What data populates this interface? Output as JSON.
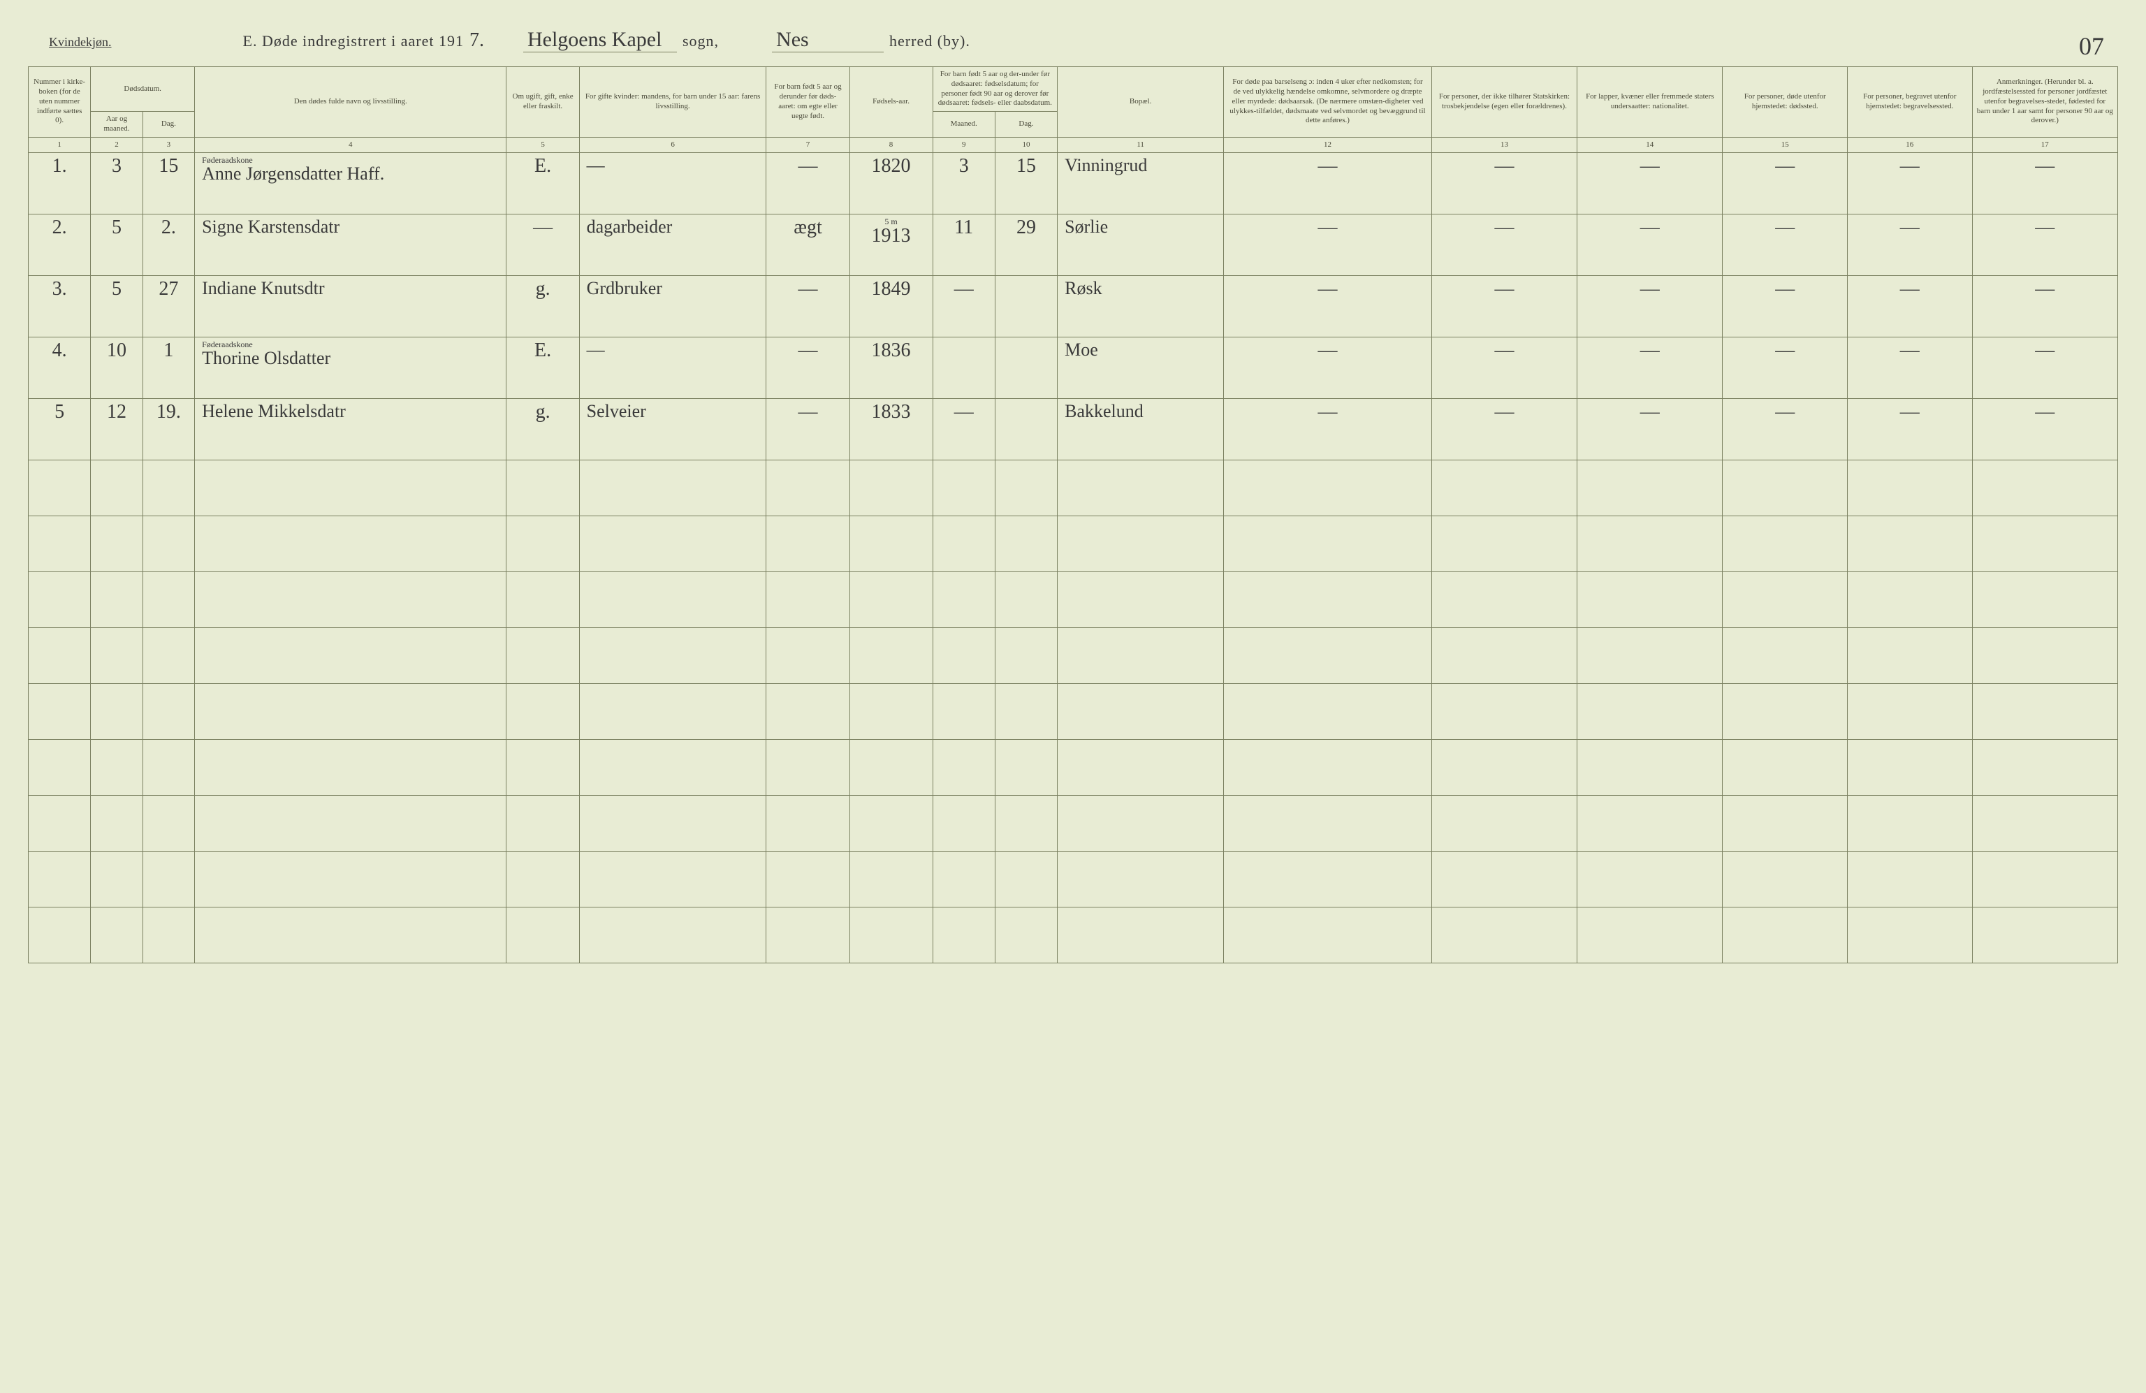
{
  "page": {
    "gender_label": "Kvindekjøn.",
    "title_prefix": "E.  Døde indregistrert i aaret 191",
    "year_suffix": "7.",
    "parish_label_1": "sogn,",
    "parish_label_2": "herred (by).",
    "parish_handwritten": "Helgoens Kapel",
    "district_handwritten": "Nes",
    "page_number": "07"
  },
  "columns": {
    "c1": "Nummer i kirke-boken (for de uten nummer indførte sættes 0).",
    "c2_3": "Dødsdatum.",
    "c2": "Aar og maaned.",
    "c3": "Dag.",
    "c4": "Den dødes fulde navn og livsstilling.",
    "c5": "Om ugift, gift, enke eller fraskilt.",
    "c6": "For gifte kvinder: mandens, for barn under 15 aar: farens livsstilling.",
    "c7": "For barn født 5 aar og derunder før døds-aaret: om egte eller uegte født.",
    "c8": "Fødsels-aar.",
    "c9_10": "For barn født 5 aar og der-under før dødsaaret: fødselsdatum; for personer født 90 aar og derover før dødsaaret: fødsels- eller daabsdatum.",
    "c9": "Maaned.",
    "c10": "Dag.",
    "c11": "Bopæl.",
    "c12": "For døde paa barselseng ɔ: inden 4 uker efter nedkomsten; for de ved ulykkelig hændelse omkomne, selvmordere og dræpte eller myrdede: dødsaarsak. (De nærmere omstæn-digheter ved ulykkes-tilfældet, dødsmaate ved selvmordet og bevæggrund til dette anføres.)",
    "c13": "For personer, der ikke tilhører Statskirken: trosbekjendelse (egen eller forældrenes).",
    "c14": "For lapper, kvæner eller fremmede staters undersaatter: nationalitet.",
    "c15": "For personer, døde utenfor hjemstedet: dødssted.",
    "c16": "For personer, begravet utenfor hjemstedet: begravelsessted.",
    "c17": "Anmerkninger. (Herunder bl. a. jordfæstelsessted for personer jordfæstet utenfor begravelses-stedet, fødested for barn under 1 aar samt for personer 90 aar og derover.)"
  },
  "colnums": [
    "1",
    "2",
    "3",
    "4",
    "5",
    "6",
    "7",
    "8",
    "9",
    "10",
    "11",
    "12",
    "13",
    "14",
    "15",
    "16",
    "17"
  ],
  "rows": [
    {
      "num": "1.",
      "month": "3",
      "day": "15",
      "name_note": "Føderaadskone",
      "name": "Anne Jørgensdatter Haff.",
      "status": "E.",
      "mandens": "—",
      "egte": "—",
      "faar": "1820",
      "fmnd": "3",
      "fdag": "15",
      "bopael": "Vinningrud",
      "c12": "—",
      "c13": "—",
      "c14": "—",
      "c15": "—",
      "c16": "—",
      "c17": "—"
    },
    {
      "num": "2.",
      "month": "5",
      "day": "2.",
      "name_note": "",
      "name": "Signe Karstensdatr",
      "status": "—",
      "mandens": "dagarbeider",
      "egte": "ægt",
      "faar": "1913",
      "fmnd": "11",
      "fdag": "29",
      "bopael": "Sørlie",
      "faar_note": "5 m",
      "c12": "—",
      "c13": "—",
      "c14": "—",
      "c15": "—",
      "c16": "—",
      "c17": "—"
    },
    {
      "num": "3.",
      "month": "5",
      "day": "27",
      "name_note": "",
      "name": "Indiane Knutsdtr",
      "status": "g.",
      "mandens": "Grdbruker",
      "egte": "—",
      "faar": "1849",
      "fmnd": "—",
      "fdag": "",
      "bopael": "Røsk",
      "c12": "—",
      "c13": "—",
      "c14": "—",
      "c15": "—",
      "c16": "—",
      "c17": "—"
    },
    {
      "num": "4.",
      "month": "10",
      "day": "1",
      "name_note": "Føderaadskone",
      "name": "Thorine Olsdatter",
      "status": "E.",
      "mandens": "—",
      "egte": "—",
      "faar": "1836",
      "fmnd": "",
      "fdag": "",
      "bopael": "Moe",
      "c12": "—",
      "c13": "—",
      "c14": "—",
      "c15": "—",
      "c16": "—",
      "c17": "—"
    },
    {
      "num": "5",
      "month": "12",
      "day": "19.",
      "name_note": "",
      "name": "Helene Mikkelsdatr",
      "status": "g.",
      "mandens": "Selveier",
      "egte": "—",
      "faar": "1833",
      "fmnd": "—",
      "fdag": "",
      "bopael": "Bakkelund",
      "c12": "—",
      "c13": "—",
      "c14": "—",
      "c15": "—",
      "c16": "—",
      "c17": "—"
    }
  ],
  "empty_rows": 9,
  "col_widths": [
    "3%",
    "2.5%",
    "2.5%",
    "15%",
    "3.5%",
    "9%",
    "4%",
    "4%",
    "3%",
    "3%",
    "8%",
    "10%",
    "7%",
    "7%",
    "6%",
    "6%",
    "7%"
  ],
  "colors": {
    "background": "#e8ecd4",
    "border": "#7a8060",
    "header_text": "#4a4a3a",
    "ink": "#3a3a3a"
  }
}
